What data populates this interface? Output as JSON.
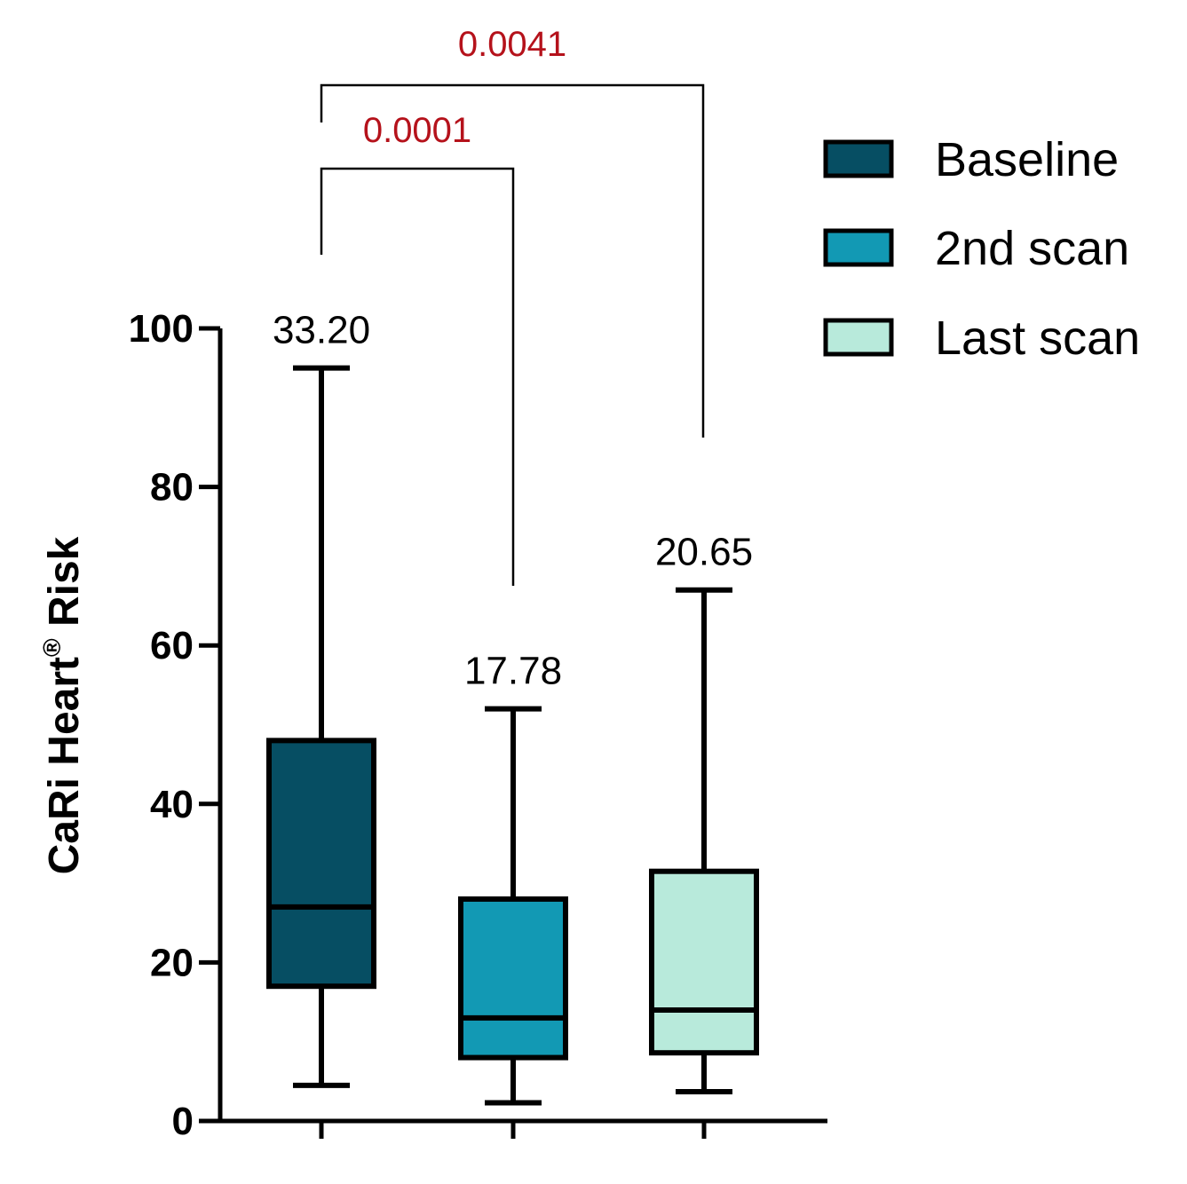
{
  "chart_data": {
    "type": "box",
    "ylabel": "CaRi Heart",
    "ylabel_mark": "®",
    "ylabel_suffix": " Risk",
    "ylim": [
      0,
      100
    ],
    "yticks": [
      0,
      20,
      40,
      60,
      80,
      100
    ],
    "legend_position": "top-right",
    "series": [
      {
        "name": "Baseline",
        "min": 4.5,
        "q1": 17.0,
        "median": 27.0,
        "q3": 48.0,
        "max": 95.0,
        "label": "33.20",
        "color": "#064e63"
      },
      {
        "name": "2nd scan",
        "min": 2.3,
        "q1": 8.0,
        "median": 13.0,
        "q3": 28.0,
        "max": 52.0,
        "label": "17.78",
        "color": "#1299b4"
      },
      {
        "name": "Last scan",
        "min": 3.7,
        "q1": 8.6,
        "median": 14.0,
        "q3": 31.5,
        "max": 67.0,
        "label": "20.65",
        "color": "#b8eadb"
      }
    ],
    "comparisons": [
      {
        "from": "Baseline",
        "to": "2nd scan",
        "p": "0.0001"
      },
      {
        "from": "Baseline",
        "to": "Last scan",
        "p": "0.0041"
      }
    ]
  }
}
